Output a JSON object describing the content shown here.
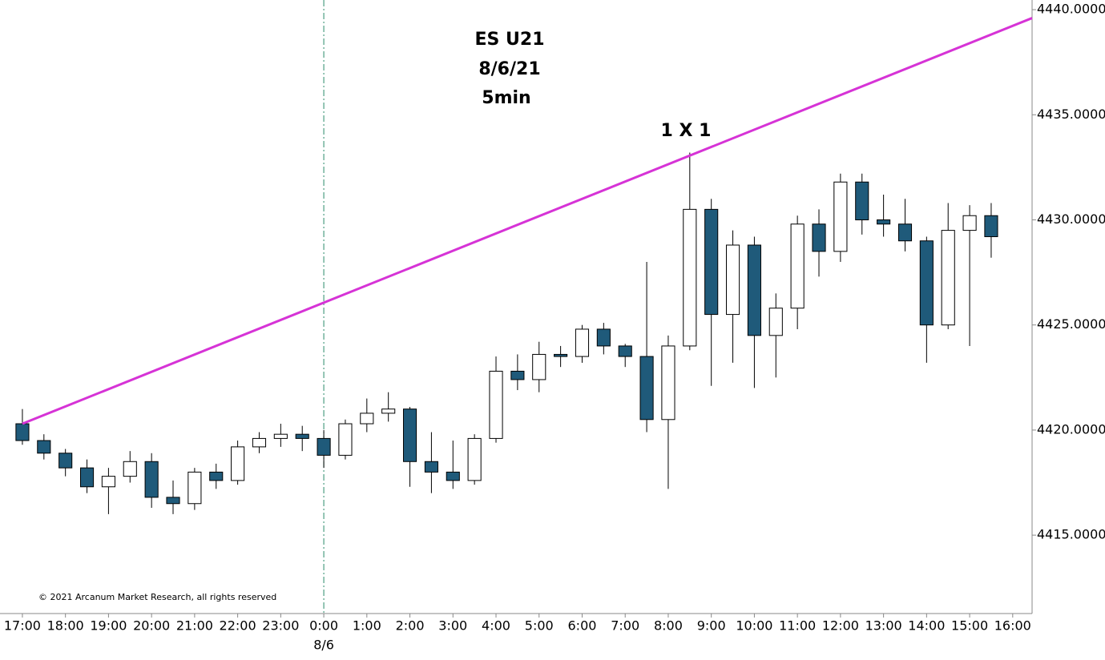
{
  "chart_data": {
    "type": "candlestick",
    "title_lines": [
      "ES U21",
      "8/6/21",
      "5min"
    ],
    "copyright": "© 2021 Arcanum Market Research, all rights reserved",
    "up_color": "#ffffff",
    "down_color": "#1f5a7a",
    "x": [
      0,
      0.5,
      1,
      1.5,
      2,
      2.5,
      3,
      3.5,
      4,
      4.5,
      5,
      5.5,
      6,
      6.5,
      7,
      7.5,
      8,
      8.5,
      9,
      9.5,
      10,
      10.5,
      11,
      11.5,
      12,
      12.5,
      13,
      13.5,
      14,
      14.5,
      15,
      15.5,
      16,
      16.5,
      17,
      17.5,
      18,
      18.5,
      19,
      19.5,
      20,
      20.5,
      21,
      21.5,
      22,
      22.5
    ],
    "open": [
      4420.3,
      4419.5,
      4418.9,
      4418.2,
      4417.3,
      4417.8,
      4418.5,
      4416.8,
      4416.5,
      4418.0,
      4417.6,
      4419.2,
      4419.6,
      4419.8,
      4419.6,
      4418.8,
      4420.3,
      4420.8,
      4421.0,
      4418.5,
      4418.0,
      4417.6,
      4419.6,
      4422.8,
      4422.4,
      4423.6,
      4423.5,
      4424.8,
      4424.0,
      4423.5,
      4420.5,
      4424.0,
      4430.5,
      4425.5,
      4428.8,
      4424.5,
      4425.8,
      4429.8,
      4428.5,
      4431.8,
      4430.0,
      4429.8,
      4429.0,
      4425.0,
      4429.5,
      4430.2
    ],
    "high": [
      4421.0,
      4419.8,
      4419.1,
      4418.6,
      4418.2,
      4419.0,
      4418.9,
      4417.6,
      4418.2,
      4418.4,
      4419.5,
      4419.9,
      4420.3,
      4420.2,
      4420.0,
      4420.5,
      4421.5,
      4421.8,
      4421.1,
      4419.9,
      4419.5,
      4419.8,
      4423.5,
      4423.6,
      4424.2,
      4424.0,
      4425.0,
      4425.1,
      4424.1,
      4428.0,
      4424.5,
      4433.2,
      4431.0,
      4429.5,
      4429.2,
      4426.5,
      4430.2,
      4430.5,
      4432.2,
      4432.2,
      4431.2,
      4431.0,
      4429.2,
      4430.8,
      4430.7,
      4430.8
    ],
    "low": [
      4419.3,
      4418.6,
      4417.8,
      4417.0,
      4416.0,
      4417.5,
      4416.3,
      4416.0,
      4416.2,
      4417.2,
      4417.4,
      4418.9,
      4419.2,
      4419.0,
      4418.2,
      4418.6,
      4419.9,
      4420.4,
      4417.3,
      4417.0,
      4417.2,
      4417.4,
      4419.4,
      4421.9,
      4421.8,
      4423.0,
      4423.2,
      4423.6,
      4423.0,
      4419.9,
      4417.2,
      4423.8,
      4422.1,
      4423.2,
      4422.0,
      4422.5,
      4424.8,
      4427.3,
      4428.0,
      4429.3,
      4429.2,
      4428.5,
      4423.2,
      4424.8,
      4424.0,
      4428.2
    ],
    "close": [
      4419.5,
      4418.9,
      4418.2,
      4417.3,
      4417.8,
      4418.5,
      4416.8,
      4416.5,
      4418.0,
      4417.6,
      4419.2,
      4419.6,
      4419.8,
      4419.6,
      4418.8,
      4420.3,
      4420.8,
      4421.0,
      4418.5,
      4418.0,
      4417.6,
      4419.6,
      4422.8,
      4422.4,
      4423.6,
      4423.5,
      4424.8,
      4424.0,
      4423.5,
      4420.5,
      4424.0,
      4430.5,
      4425.5,
      4428.8,
      4424.5,
      4425.8,
      4429.8,
      4428.5,
      4431.8,
      4430.0,
      4429.8,
      4429.0,
      4425.0,
      4429.5,
      4430.2,
      4429.2
    ],
    "xlim": [
      -0.52,
      23.45
    ],
    "xticks": [
      {
        "value": 0,
        "label": "17:00"
      },
      {
        "value": 1,
        "label": "18:00"
      },
      {
        "value": 2,
        "label": "19:00"
      },
      {
        "value": 3,
        "label": "20:00"
      },
      {
        "value": 4,
        "label": "21:00"
      },
      {
        "value": 5,
        "label": "22:00"
      },
      {
        "value": 6,
        "label": "23:00"
      },
      {
        "value": 7,
        "label": "0:00"
      },
      {
        "value": 8,
        "label": "1:00"
      },
      {
        "value": 9,
        "label": "2:00"
      },
      {
        "value": 10,
        "label": "3:00"
      },
      {
        "value": 11,
        "label": "4:00"
      },
      {
        "value": 12,
        "label": "5:00"
      },
      {
        "value": 13,
        "label": "6:00"
      },
      {
        "value": 14,
        "label": "7:00"
      },
      {
        "value": 15,
        "label": "8:00"
      },
      {
        "value": 16,
        "label": "9:00"
      },
      {
        "value": 17,
        "label": "10:00"
      },
      {
        "value": 18,
        "label": "11:00"
      },
      {
        "value": 19,
        "label": "12:00"
      },
      {
        "value": 20,
        "label": "13:00"
      },
      {
        "value": 21,
        "label": "14:00"
      },
      {
        "value": 22,
        "label": "15:00"
      },
      {
        "value": 23,
        "label": "16:00"
      }
    ],
    "ylim": [
      4411.27,
      4440.46
    ],
    "yticks": [
      {
        "value": 4415,
        "label": "4415.0000"
      },
      {
        "value": 4420,
        "label": "4420.0000"
      },
      {
        "value": 4425,
        "label": "4425.0000"
      },
      {
        "value": 4430,
        "label": "4430.0000"
      },
      {
        "value": 4435,
        "label": "4435.0000"
      },
      {
        "value": 4440,
        "label": "4440.0000"
      }
    ],
    "date_marker": {
      "x": 7,
      "label": "8/6",
      "color": "#2a8a6a"
    },
    "trendline": {
      "label": "1 X 1",
      "x": [
        0,
        23.45
      ],
      "y": [
        4420.3,
        4439.6
      ],
      "color": "#d633d6"
    }
  }
}
